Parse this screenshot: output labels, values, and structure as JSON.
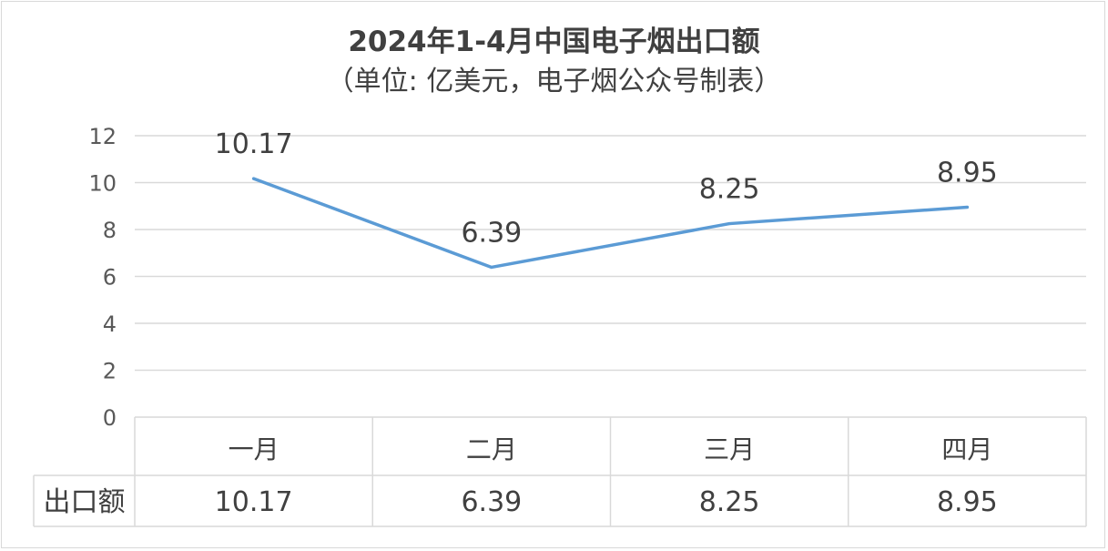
{
  "title": "2024年1-4月中国电子烟出口额",
  "subtitle": "（单位: 亿美元，电子烟公众号制表）",
  "colors": {
    "line": "#5b9bd5",
    "grid": "#d9d9d9",
    "text": "#404040"
  },
  "chart_data": {
    "type": "line",
    "title": "2024年1-4月中国电子烟出口额",
    "subtitle": "（单位: 亿美元，电子烟公众号制表）",
    "categories": [
      "一月",
      "二月",
      "三月",
      "四月"
    ],
    "series": [
      {
        "name": "出口额",
        "values": [
          10.17,
          6.39,
          8.25,
          8.95
        ],
        "labels": [
          "10.17",
          "6.39",
          "8.25",
          "8.95"
        ]
      }
    ],
    "ylim": [
      0,
      12
    ],
    "yticks": [
      "0",
      "2",
      "4",
      "6",
      "8",
      "10",
      "12"
    ],
    "grid": true,
    "data_table": true
  }
}
